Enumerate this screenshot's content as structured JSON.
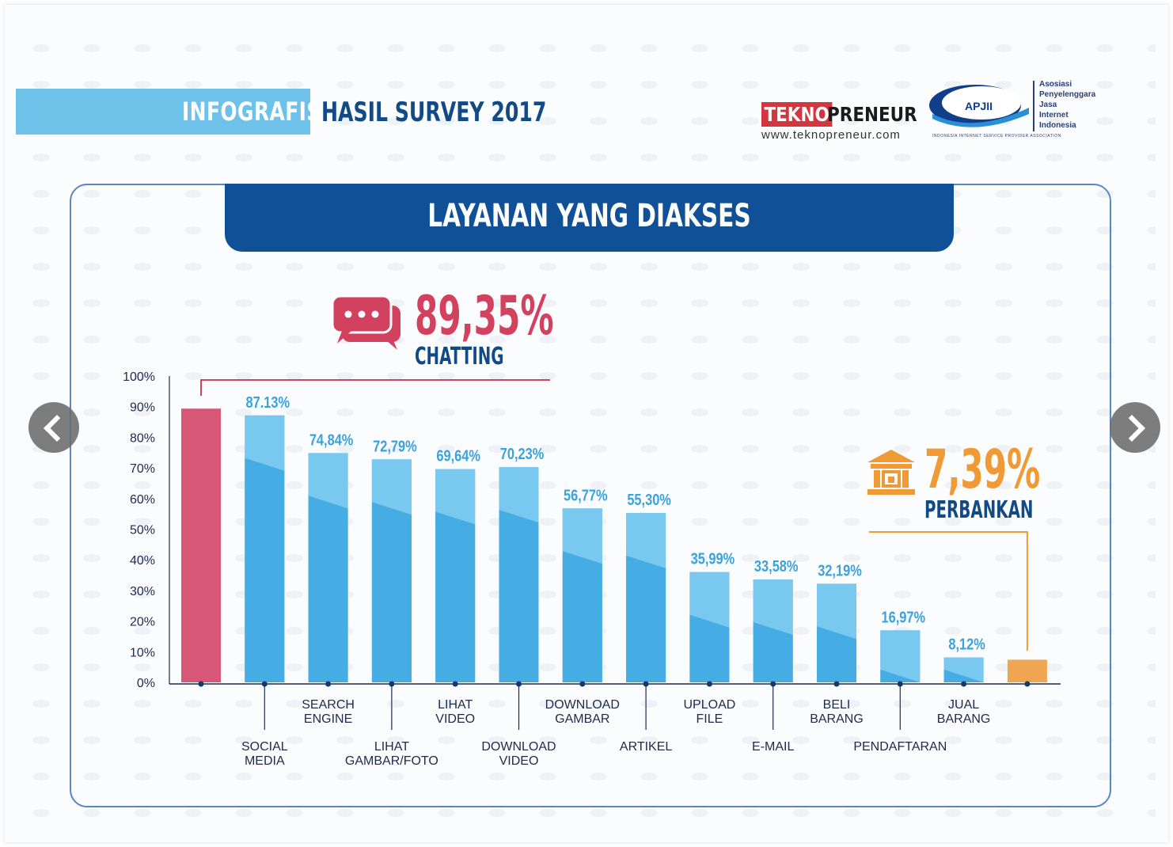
{
  "header": {
    "infografis": "INFOGRAFIS",
    "survey_title": "HASIL SURVEY 2017"
  },
  "logos": {
    "tekno": "TEKNO",
    "preneur": "PRENEUR",
    "url": "www.teknopreneur.com",
    "apjii": "APJII",
    "apjii_lines": [
      "Asosiasi",
      "Penyelenggara",
      "Jasa",
      "Internet",
      "Indonesia"
    ],
    "apjii_footer": "INDONESIA INTERNET SERVICE PROVIDER ASSOCIATION"
  },
  "banner": {
    "title": "LAYANAN YANG DIAKSES"
  },
  "callouts": {
    "chatting": {
      "value": "89,35%",
      "label": "CHATTING",
      "icon": "chat-bubbles-icon"
    },
    "perbankan": {
      "value": "7,39%",
      "label": "PERBANKAN",
      "icon": "bank-icon"
    }
  },
  "colors": {
    "accent_bar": "#d85676",
    "bar": "#45ade3",
    "bar_light": "#7ecbef",
    "orange_bar": "#f0a650",
    "pink": "#d2415e",
    "orange": "#f09a36",
    "value_label": "#3aa3dd",
    "banner": "#0f5096",
    "header_band": "#6ec2ea"
  },
  "chart_data": {
    "type": "bar",
    "ylim": [
      0,
      100
    ],
    "yticks": [
      "0%",
      "10%",
      "20%",
      "30%",
      "40%",
      "50%",
      "60%",
      "70%",
      "80%",
      "90%",
      "100%"
    ],
    "categories": [
      "CHATTING",
      "SOCIAL MEDIA",
      "SEARCH ENGINE",
      "LIHAT GAMBAR/FOTO",
      "LIHAT VIDEO",
      "DOWNLOAD VIDEO",
      "DOWNLOAD GAMBAR",
      "ARTIKEL",
      "UPLOAD FILE",
      "E-MAIL",
      "BELI BARANG",
      "PENDAFTARAN",
      "JUAL BARANG",
      "PERBANKAN"
    ],
    "category_lines": [
      [],
      [
        "SOCIAL",
        "MEDIA"
      ],
      [
        "SEARCH",
        "ENGINE"
      ],
      [
        "LIHAT",
        "GAMBAR/FOTO"
      ],
      [
        "LIHAT",
        "VIDEO"
      ],
      [
        "DOWNLOAD",
        "VIDEO"
      ],
      [
        "DOWNLOAD",
        "GAMBAR"
      ],
      [
        "ARTIKEL"
      ],
      [
        "UPLOAD",
        "FILE"
      ],
      [
        "E-MAIL"
      ],
      [
        "BELI",
        "BARANG"
      ],
      [
        "PENDAFTARAN"
      ],
      [
        "JUAL",
        "BARANG"
      ],
      []
    ],
    "label_row": [
      0,
      2,
      1,
      2,
      1,
      2,
      1,
      2,
      1,
      2,
      1,
      2,
      1,
      0
    ],
    "values": [
      89.35,
      87.13,
      74.84,
      72.79,
      69.64,
      70.23,
      56.77,
      55.3,
      35.99,
      33.58,
      32.19,
      16.97,
      8.12,
      7.39
    ],
    "value_labels": [
      "",
      "87.13%",
      "74,84%",
      "72,79%",
      "69,64%",
      "70,23%",
      "56,77%",
      "55,30%",
      "35,99%",
      "33,58%",
      "32,19%",
      "16,97%",
      "8,12%",
      ""
    ]
  }
}
